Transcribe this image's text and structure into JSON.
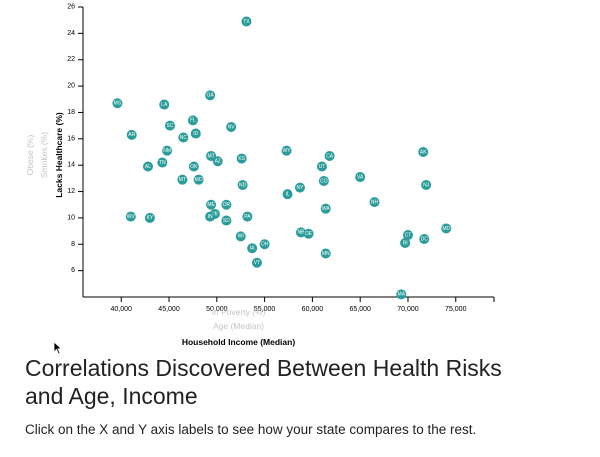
{
  "page": {
    "title": "Correlations Discovered Between Health Risks and Age, Income",
    "subtitle": "Click on the X and Y axis labels to see how your state compares to the rest."
  },
  "chart_data": {
    "type": "scatter",
    "title": "",
    "xlabel": "Household Income (Median)",
    "ylabel": "Lacks Healthcare (%)",
    "x_axis_options": [
      {
        "label": "In Poverty (%)",
        "active": false
      },
      {
        "label": "Age (Median)",
        "active": false
      },
      {
        "label": "Household Income (Median)",
        "active": true
      }
    ],
    "y_axis_options": [
      {
        "label": "Obese (%)",
        "active": false
      },
      {
        "label": "Smokes (%)",
        "active": false
      },
      {
        "label": "Lacks Healthcare (%)",
        "active": true
      }
    ],
    "xlim": [
      36000,
      79000
    ],
    "ylim": [
      4,
      26
    ],
    "x_ticks": [
      40000,
      45000,
      50000,
      55000,
      60000,
      65000,
      70000,
      75000
    ],
    "x_tick_labels": [
      "40,000",
      "45,000",
      "50,000",
      "55,000",
      "60,000",
      "65,000",
      "70,000",
      "75,000"
    ],
    "y_ticks": [
      6,
      8,
      10,
      12,
      14,
      16,
      18,
      20,
      22,
      24,
      26
    ],
    "y_tick_labels": [
      "6",
      "8",
      "10",
      "12",
      "14",
      "16",
      "18",
      "20",
      "22",
      "24",
      "26"
    ],
    "grid": false,
    "marker_color": "#2a9d9a",
    "points": [
      {
        "label": "TX",
        "x": 53100,
        "y": 24.9
      },
      {
        "label": "GA",
        "x": 49300,
        "y": 19.3
      },
      {
        "label": "MS",
        "x": 39600,
        "y": 18.7
      },
      {
        "label": "LA",
        "x": 44500,
        "y": 18.6
      },
      {
        "label": "FL",
        "x": 47500,
        "y": 17.4
      },
      {
        "label": "SC",
        "x": 45100,
        "y": 17.0
      },
      {
        "label": "NV",
        "x": 51500,
        "y": 16.9
      },
      {
        "label": "AR",
        "x": 41100,
        "y": 16.3
      },
      {
        "label": "NC",
        "x": 46500,
        "y": 16.1
      },
      {
        "label": "ID",
        "x": 47800,
        "y": 16.4
      },
      {
        "label": "NM",
        "x": 44800,
        "y": 15.1
      },
      {
        "label": "WY",
        "x": 57300,
        "y": 15.1
      },
      {
        "label": "AK",
        "x": 71600,
        "y": 15.0
      },
      {
        "label": "CA",
        "x": 61800,
        "y": 14.7
      },
      {
        "label": "TN",
        "x": 44300,
        "y": 14.2
      },
      {
        "label": "MT",
        "x": 49400,
        "y": 14.7
      },
      {
        "label": "KS",
        "x": 52600,
        "y": 14.5
      },
      {
        "label": "AZ",
        "x": 50100,
        "y": 14.3
      },
      {
        "label": "AL",
        "x": 42800,
        "y": 13.9
      },
      {
        "label": "OK",
        "x": 47600,
        "y": 13.9
      },
      {
        "label": "UT",
        "x": 61000,
        "y": 13.9
      },
      {
        "label": "MT",
        "x": 46400,
        "y": 12.9
      },
      {
        "label": "MO",
        "x": 48100,
        "y": 12.9
      },
      {
        "label": "CO",
        "x": 61200,
        "y": 12.8
      },
      {
        "label": "VA",
        "x": 65000,
        "y": 13.1
      },
      {
        "label": "NJ",
        "x": 71900,
        "y": 12.5
      },
      {
        "label": "ND",
        "x": 52700,
        "y": 12.5
      },
      {
        "label": "NY",
        "x": 58700,
        "y": 12.3
      },
      {
        "label": "IL",
        "x": 57400,
        "y": 11.8
      },
      {
        "label": "NH",
        "x": 66500,
        "y": 11.2
      },
      {
        "label": "ME",
        "x": 49400,
        "y": 11.0
      },
      {
        "label": "OR",
        "x": 51000,
        "y": 11.0
      },
      {
        "label": "WA",
        "x": 61400,
        "y": 10.7
      },
      {
        "label": "WV",
        "x": 41000,
        "y": 10.1
      },
      {
        "label": "KY",
        "x": 43000,
        "y": 10.0
      },
      {
        "label": "MI",
        "x": 49800,
        "y": 10.3
      },
      {
        "label": "IN",
        "x": 49300,
        "y": 10.1
      },
      {
        "label": "PA",
        "x": 53200,
        "y": 10.1
      },
      {
        "label": "SD",
        "x": 51000,
        "y": 9.8
      },
      {
        "label": "MD",
        "x": 74000,
        "y": 9.2
      },
      {
        "label": "NB",
        "x": 58800,
        "y": 8.9
      },
      {
        "label": "DE",
        "x": 59600,
        "y": 8.8
      },
      {
        "label": "WI",
        "x": 52500,
        "y": 8.6
      },
      {
        "label": "CT",
        "x": 70000,
        "y": 8.7
      },
      {
        "label": "DC",
        "x": 71700,
        "y": 8.4
      },
      {
        "label": "RI",
        "x": 69700,
        "y": 8.1
      },
      {
        "label": "IA",
        "x": 53700,
        "y": 7.7
      },
      {
        "label": "OH",
        "x": 55000,
        "y": 8.0
      },
      {
        "label": "MN",
        "x": 61400,
        "y": 7.3
      },
      {
        "label": "VT",
        "x": 54200,
        "y": 6.6
      },
      {
        "label": "MA",
        "x": 69300,
        "y": 4.2
      }
    ]
  }
}
